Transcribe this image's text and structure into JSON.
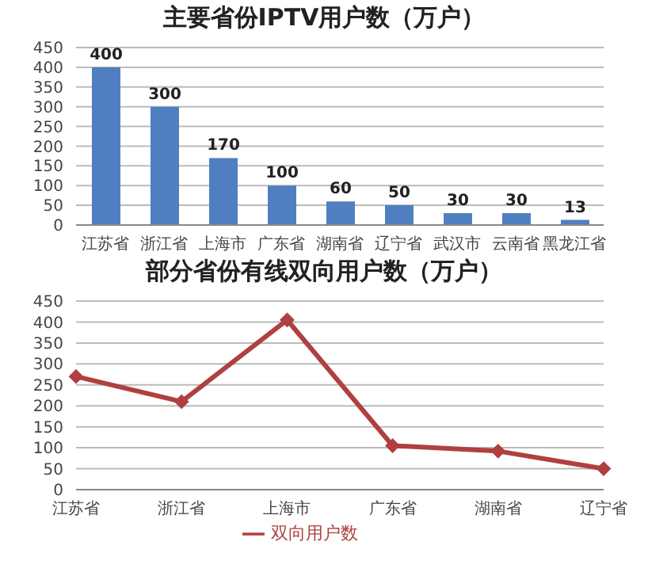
{
  "chart_data": [
    {
      "type": "bar",
      "title": "主要省份IPTV用户数（万户）",
      "categories": [
        "江苏省",
        "浙江省",
        "上海市",
        "广东省",
        "湖南省",
        "辽宁省",
        "武汉市",
        "云南省",
        "黑龙江省"
      ],
      "values": [
        400,
        300,
        170,
        100,
        60,
        50,
        30,
        30,
        13
      ],
      "color": "#4f7fc0",
      "ylim": [
        0,
        450
      ],
      "yticks": [
        0,
        50,
        100,
        150,
        200,
        250,
        300,
        350,
        400,
        450
      ],
      "grid": "y",
      "data_labels": true
    },
    {
      "type": "line",
      "title": "部分省份有线双向用户数（万户）",
      "categories": [
        "江苏省",
        "浙江省",
        "上海市",
        "广东省",
        "湖南省",
        "辽宁省"
      ],
      "series": [
        {
          "name": "双向用户数",
          "color": "#b04040",
          "values": [
            270,
            210,
            405,
            105,
            92,
            50
          ]
        }
      ],
      "ylim": [
        0,
        450
      ],
      "yticks": [
        0,
        50,
        100,
        150,
        200,
        250,
        300,
        350,
        400,
        450
      ],
      "grid": "y",
      "legend": "bottom",
      "marker": "diamond",
      "line_style": "solid"
    }
  ]
}
